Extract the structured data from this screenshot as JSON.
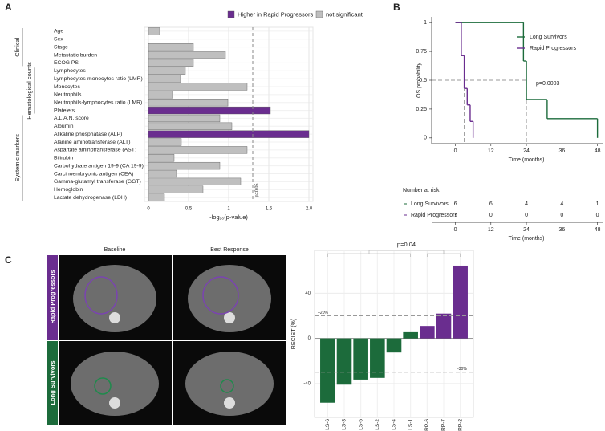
{
  "panel_labels": [
    "A",
    "B",
    "C"
  ],
  "chart_data": [
    {
      "type": "bar",
      "orientation": "horizontal",
      "categories": [
        "Age",
        "Sex",
        "Stage",
        "Metastatic burden",
        "ECOG PS",
        "Lymphocytes",
        "Lymphocytes-monocytes ratio (LMR)",
        "Monocytes",
        "Neutrophils",
        "Neutrophils-lymphocytes ratio (LMR)",
        "Platelets",
        "A.L.A.N. score",
        "Albumin",
        "Allkaline phosphatase (ALP)",
        "Alanine aminotransferase (ALT)",
        "Aspartate aminotransferase (AST)",
        "Bilirubin",
        "Carbohydrate antigen 19-9 (CA 19-9)",
        "Carcinoembryonic antigen (CEA)",
        "Gamma-glutamyl transferase (GGT)",
        "Hemoglobin",
        "Lactate dehydrogenase (LDH)"
      ],
      "series": [
        {
          "name": "Higher in Rapid Progressors",
          "color": "#6a2d8f",
          "values": [
            null,
            null,
            null,
            null,
            null,
            null,
            null,
            null,
            null,
            null,
            1.52,
            null,
            null,
            2.0,
            null,
            null,
            null,
            null,
            null,
            null,
            null,
            null
          ]
        },
        {
          "name": "not significant",
          "color": "#bfbfbf",
          "values": [
            0.14,
            0,
            0.56,
            0.96,
            0.56,
            0.46,
            0.4,
            1.23,
            0.3,
            0.99,
            null,
            0.89,
            1.04,
            null,
            0.41,
            1.23,
            0.32,
            0.89,
            0.35,
            1.15,
            0.68,
            0.2
          ]
        }
      ],
      "groups": [
        "Clinical",
        "Hematological counts",
        "Systemic markers"
      ],
      "xlabel": "-log₁₀(p-value)",
      "xlim": [
        -0.05,
        2.05
      ],
      "xticks": [
        0,
        0.5,
        1,
        1.5,
        {
          "value": 2,
          "label": "2.0"
        }
      ],
      "grid": true,
      "legend": "top",
      "reference_line": {
        "value": 1.3,
        "label": "p=0.05"
      }
    },
    {
      "type": "step",
      "series": [
        {
          "name": "Long Survivors",
          "color": "#1c6b3b",
          "x": [
            0,
            23,
            24,
            31,
            48
          ],
          "values": [
            1,
            0.667,
            0.333,
            0.167,
            0
          ]
        },
        {
          "name": "Rapid Progressors",
          "color": "#6a2d8f",
          "x": [
            0,
            2,
            3,
            4,
            5,
            6
          ],
          "values": [
            1,
            0.714,
            0.429,
            0.286,
            0.143,
            0
          ]
        }
      ],
      "xlabel": "Time (months)",
      "ylabel": "OS probability",
      "xlim": [
        -8,
        50
      ],
      "xticks": [
        0,
        12,
        24,
        36,
        48
      ],
      "ylim": [
        -0.05,
        1.05
      ],
      "yticks": [
        0,
        0.25,
        0.5,
        0.75,
        1
      ],
      "legend": "upper right",
      "annotation": "p=0.0003",
      "median": 0.5,
      "median_times": [
        3,
        24
      ],
      "risk_table": {
        "title": "Number at risk",
        "rows": [
          [
            6,
            6,
            4,
            4,
            1
          ],
          [
            7,
            0,
            0,
            0,
            0
          ]
        ]
      }
    },
    {
      "type": "bar",
      "orientation": "vertical",
      "categories": [
        "LS-6",
        "LS-3",
        "LS-5",
        "LS-2",
        "LS-4",
        "LS-1",
        "RP-6",
        "RP-7",
        "RP-2"
      ],
      "values": [
        -57,
        -41,
        -36.5,
        -35,
        -12.5,
        5.5,
        11,
        22,
        64.5
      ],
      "colors": [
        "#1c6b3b",
        "#1c6b3b",
        "#1c6b3b",
        "#1c6b3b",
        "#1c6b3b",
        "#1c6b3b",
        "#6a2d8f",
        "#6a2d8f",
        "#6a2d8f"
      ],
      "ylabel": "RECIST (%)",
      "ylim": [
        -70,
        78
      ],
      "yticks": [
        -40,
        0,
        40
      ],
      "grid": true,
      "reference_lines": [
        {
          "value": 20,
          "label": "+20%"
        },
        {
          "value": -30,
          "label": "-30%"
        }
      ],
      "annotation": "p=0.04"
    }
  ],
  "images": {
    "column_headers": [
      "Baseline",
      "Best Response"
    ],
    "row_labels": [
      "Rapid Progressors",
      "Long Survivors"
    ]
  }
}
